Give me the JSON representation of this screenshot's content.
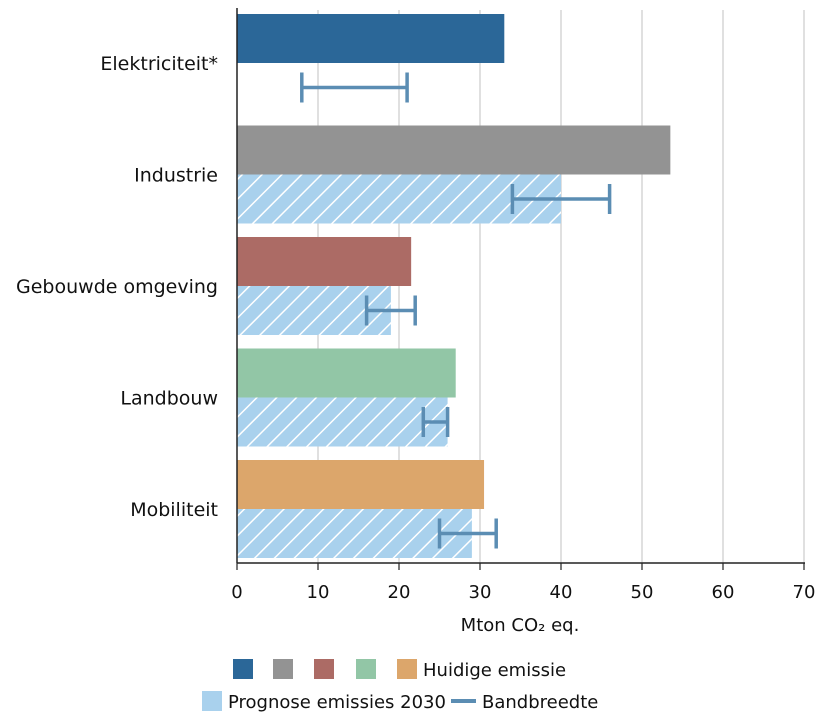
{
  "chart_data": {
    "type": "bar",
    "orientation": "horizontal",
    "xlabel": "Mton CO₂ eq.",
    "xlim": [
      0,
      70
    ],
    "xticks": [
      0,
      10,
      20,
      30,
      40,
      50,
      60,
      70
    ],
    "grid": "vertical",
    "categories": [
      "Elektriciteit*",
      "Industrie",
      "Gebouwde omgeving",
      "Landbouw",
      "Mobiliteit"
    ],
    "series": [
      {
        "name": "Huidige emissie",
        "values": [
          33,
          53.5,
          21.5,
          27,
          30.5
        ],
        "colors": [
          "#2b6798",
          "#939393",
          "#ac6b65",
          "#92c6a6",
          "#dca66b"
        ]
      },
      {
        "name": "Prognose emissies 2030",
        "values": [
          null,
          40,
          19,
          26,
          29
        ],
        "color": "#a9d1ed",
        "pattern": "diagonal-hatch"
      }
    ],
    "bandbreedte": [
      [
        8,
        21
      ],
      [
        34,
        46
      ],
      [
        16,
        22
      ],
      [
        23,
        26
      ],
      [
        25,
        32
      ]
    ],
    "bandbreedte_color": "#5b8db3",
    "legend": {
      "placement": "bottom",
      "items": [
        {
          "label": "",
          "color": "#2b6798"
        },
        {
          "label": "",
          "color": "#939393"
        },
        {
          "label": "",
          "color": "#ac6b65"
        },
        {
          "label": "",
          "color": "#92c6a6"
        },
        {
          "label": "Huidige emissie",
          "color": "#dca66b"
        },
        {
          "label": "Prognose emissies 2030",
          "color": "#a9d1ed"
        },
        {
          "label": "Bandbreedte",
          "color": "#5b8db3"
        }
      ]
    }
  }
}
